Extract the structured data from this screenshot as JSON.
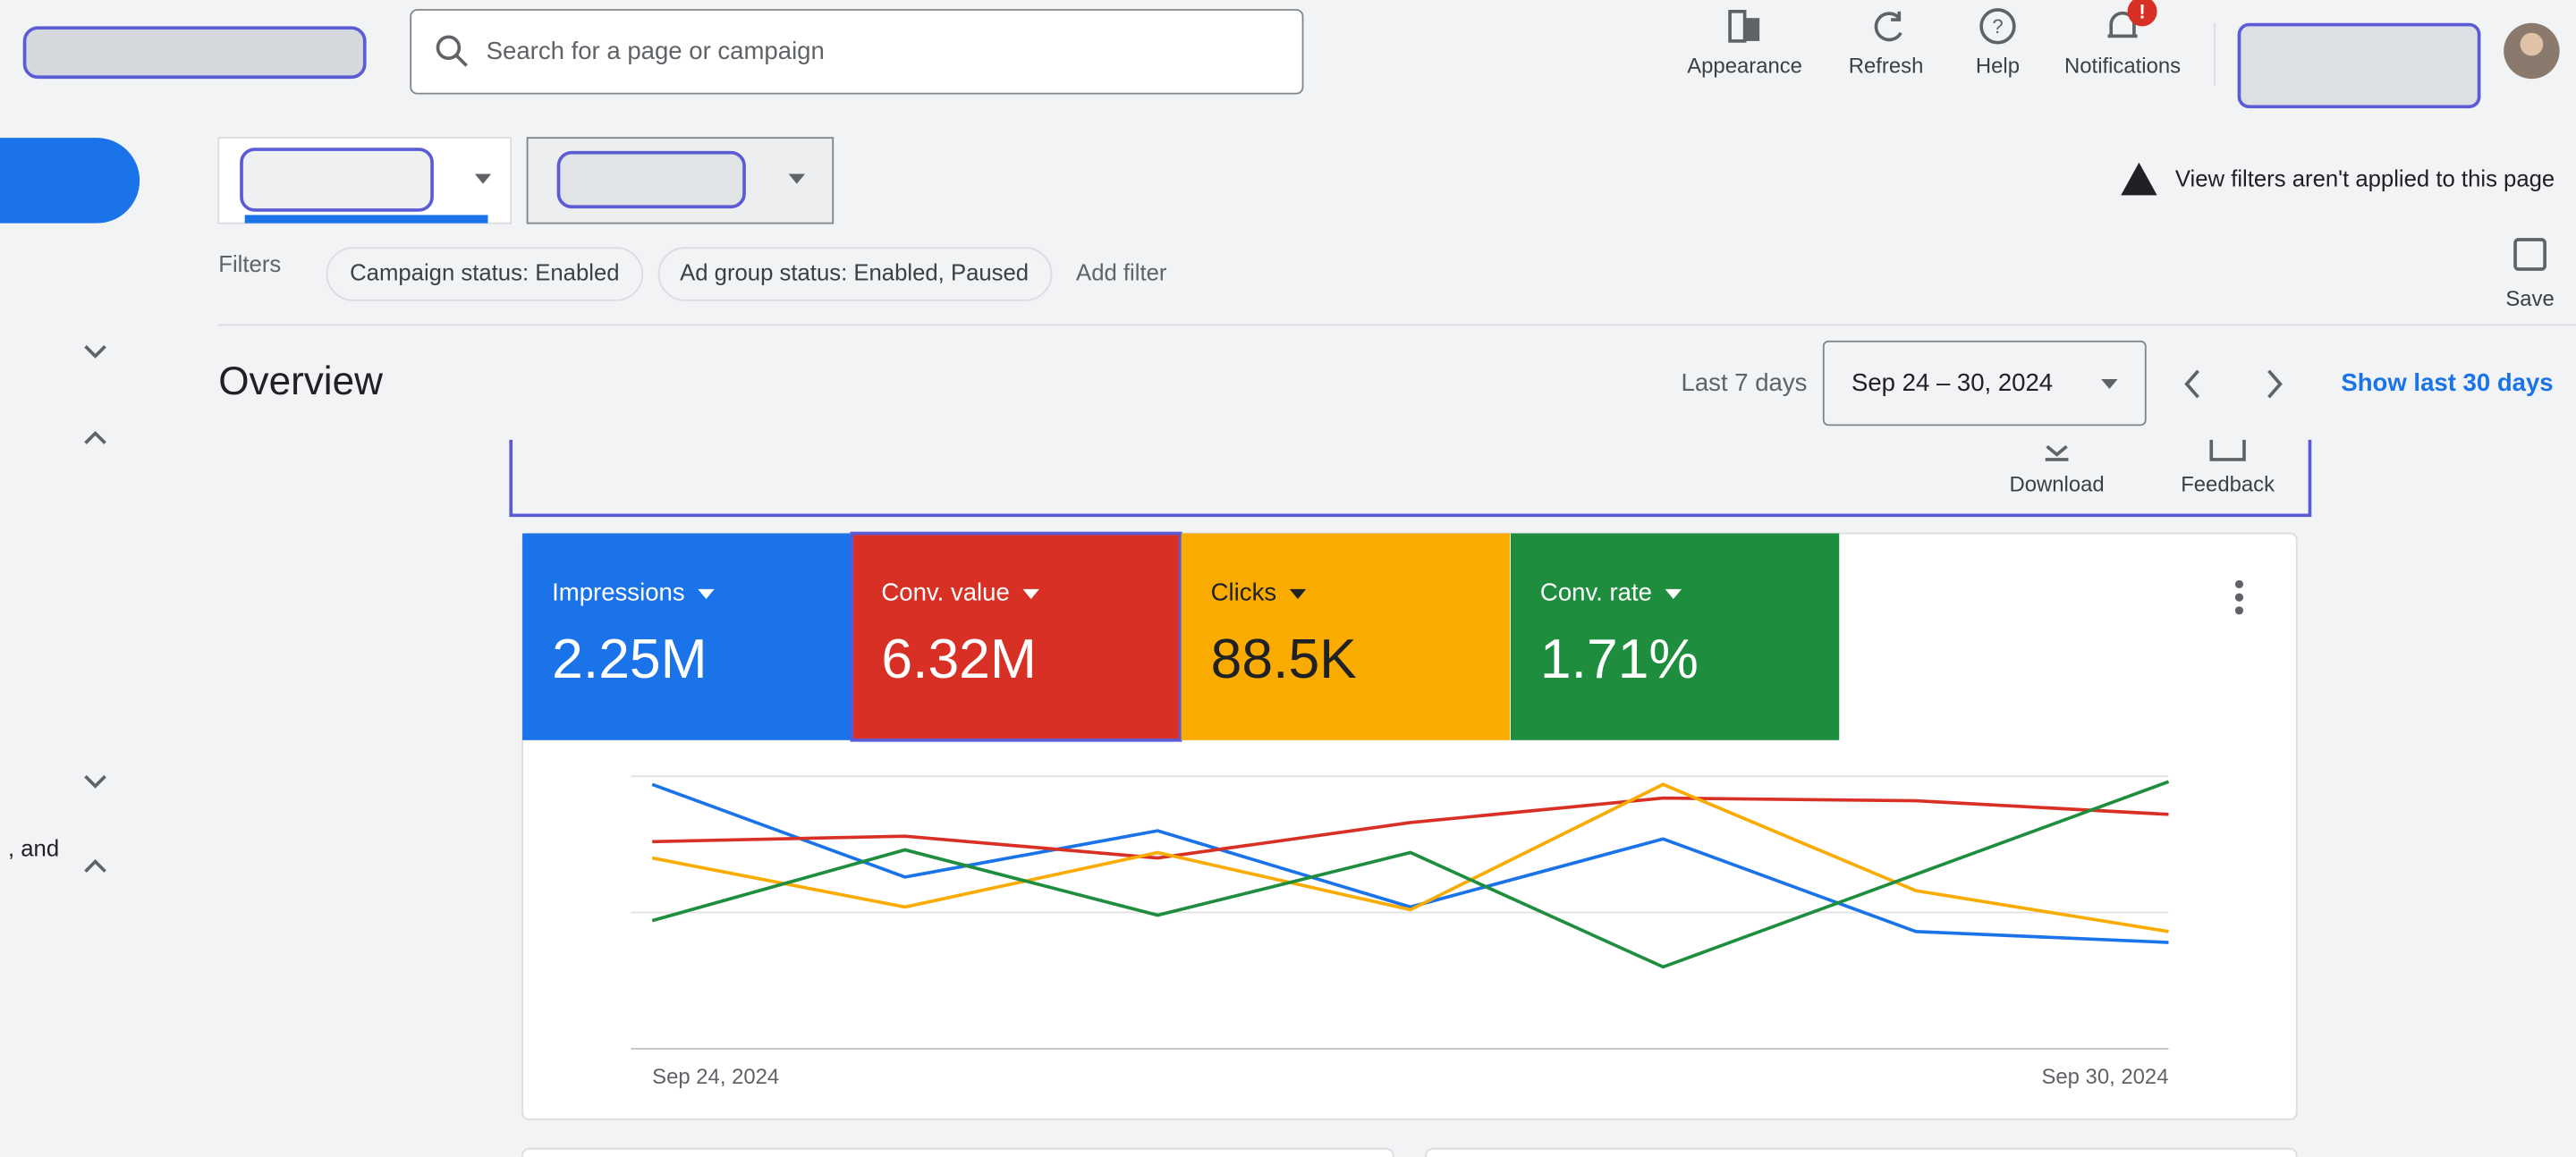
{
  "header": {
    "search_placeholder": "Search for a page or campaign",
    "buttons": [
      "Appearance",
      "Refresh",
      "Help",
      "Notifications"
    ],
    "notification_badge": "!"
  },
  "notice": "View filters aren't applied to this page",
  "filters": {
    "label": "Filters",
    "chips": [
      "Campaign status: Enabled",
      "Ad group status: Enabled, Paused"
    ],
    "add": "Add filter",
    "save": "Save"
  },
  "sidebar_text": ", and",
  "overview": {
    "title": "Overview",
    "range_label": "Last 7 days",
    "date_range": "Sep 24 – 30, 2024",
    "show_more": "Show last 30 days",
    "download": "Download",
    "feedback": "Feedback"
  },
  "chart_data": {
    "type": "line",
    "categories": [
      "Sep 24, 2024",
      null,
      null,
      null,
      null,
      null,
      "Sep 30, 2024"
    ],
    "ylim": [
      0,
      100
    ],
    "yticks": [
      0,
      50,
      100
    ],
    "grid": true,
    "series": [
      {
        "name": "Impressions",
        "total": "2.25M",
        "color": "#1a73e8",
        "values": [
          97,
          63,
          80,
          52,
          77,
          43,
          39
        ]
      },
      {
        "name": "Conv. value",
        "total": "6.32M",
        "color": "#d93025",
        "values": [
          76,
          78,
          70,
          83,
          92,
          91,
          86
        ]
      },
      {
        "name": "Clicks",
        "total": "88.5K",
        "color": "#f9ab00",
        "values": [
          70,
          52,
          72,
          51,
          97,
          58,
          43
        ]
      },
      {
        "name": "Conv. rate",
        "total": "1.71%",
        "color": "#1e8e3e",
        "values": [
          47,
          73,
          49,
          72,
          30,
          64,
          98
        ]
      }
    ]
  }
}
